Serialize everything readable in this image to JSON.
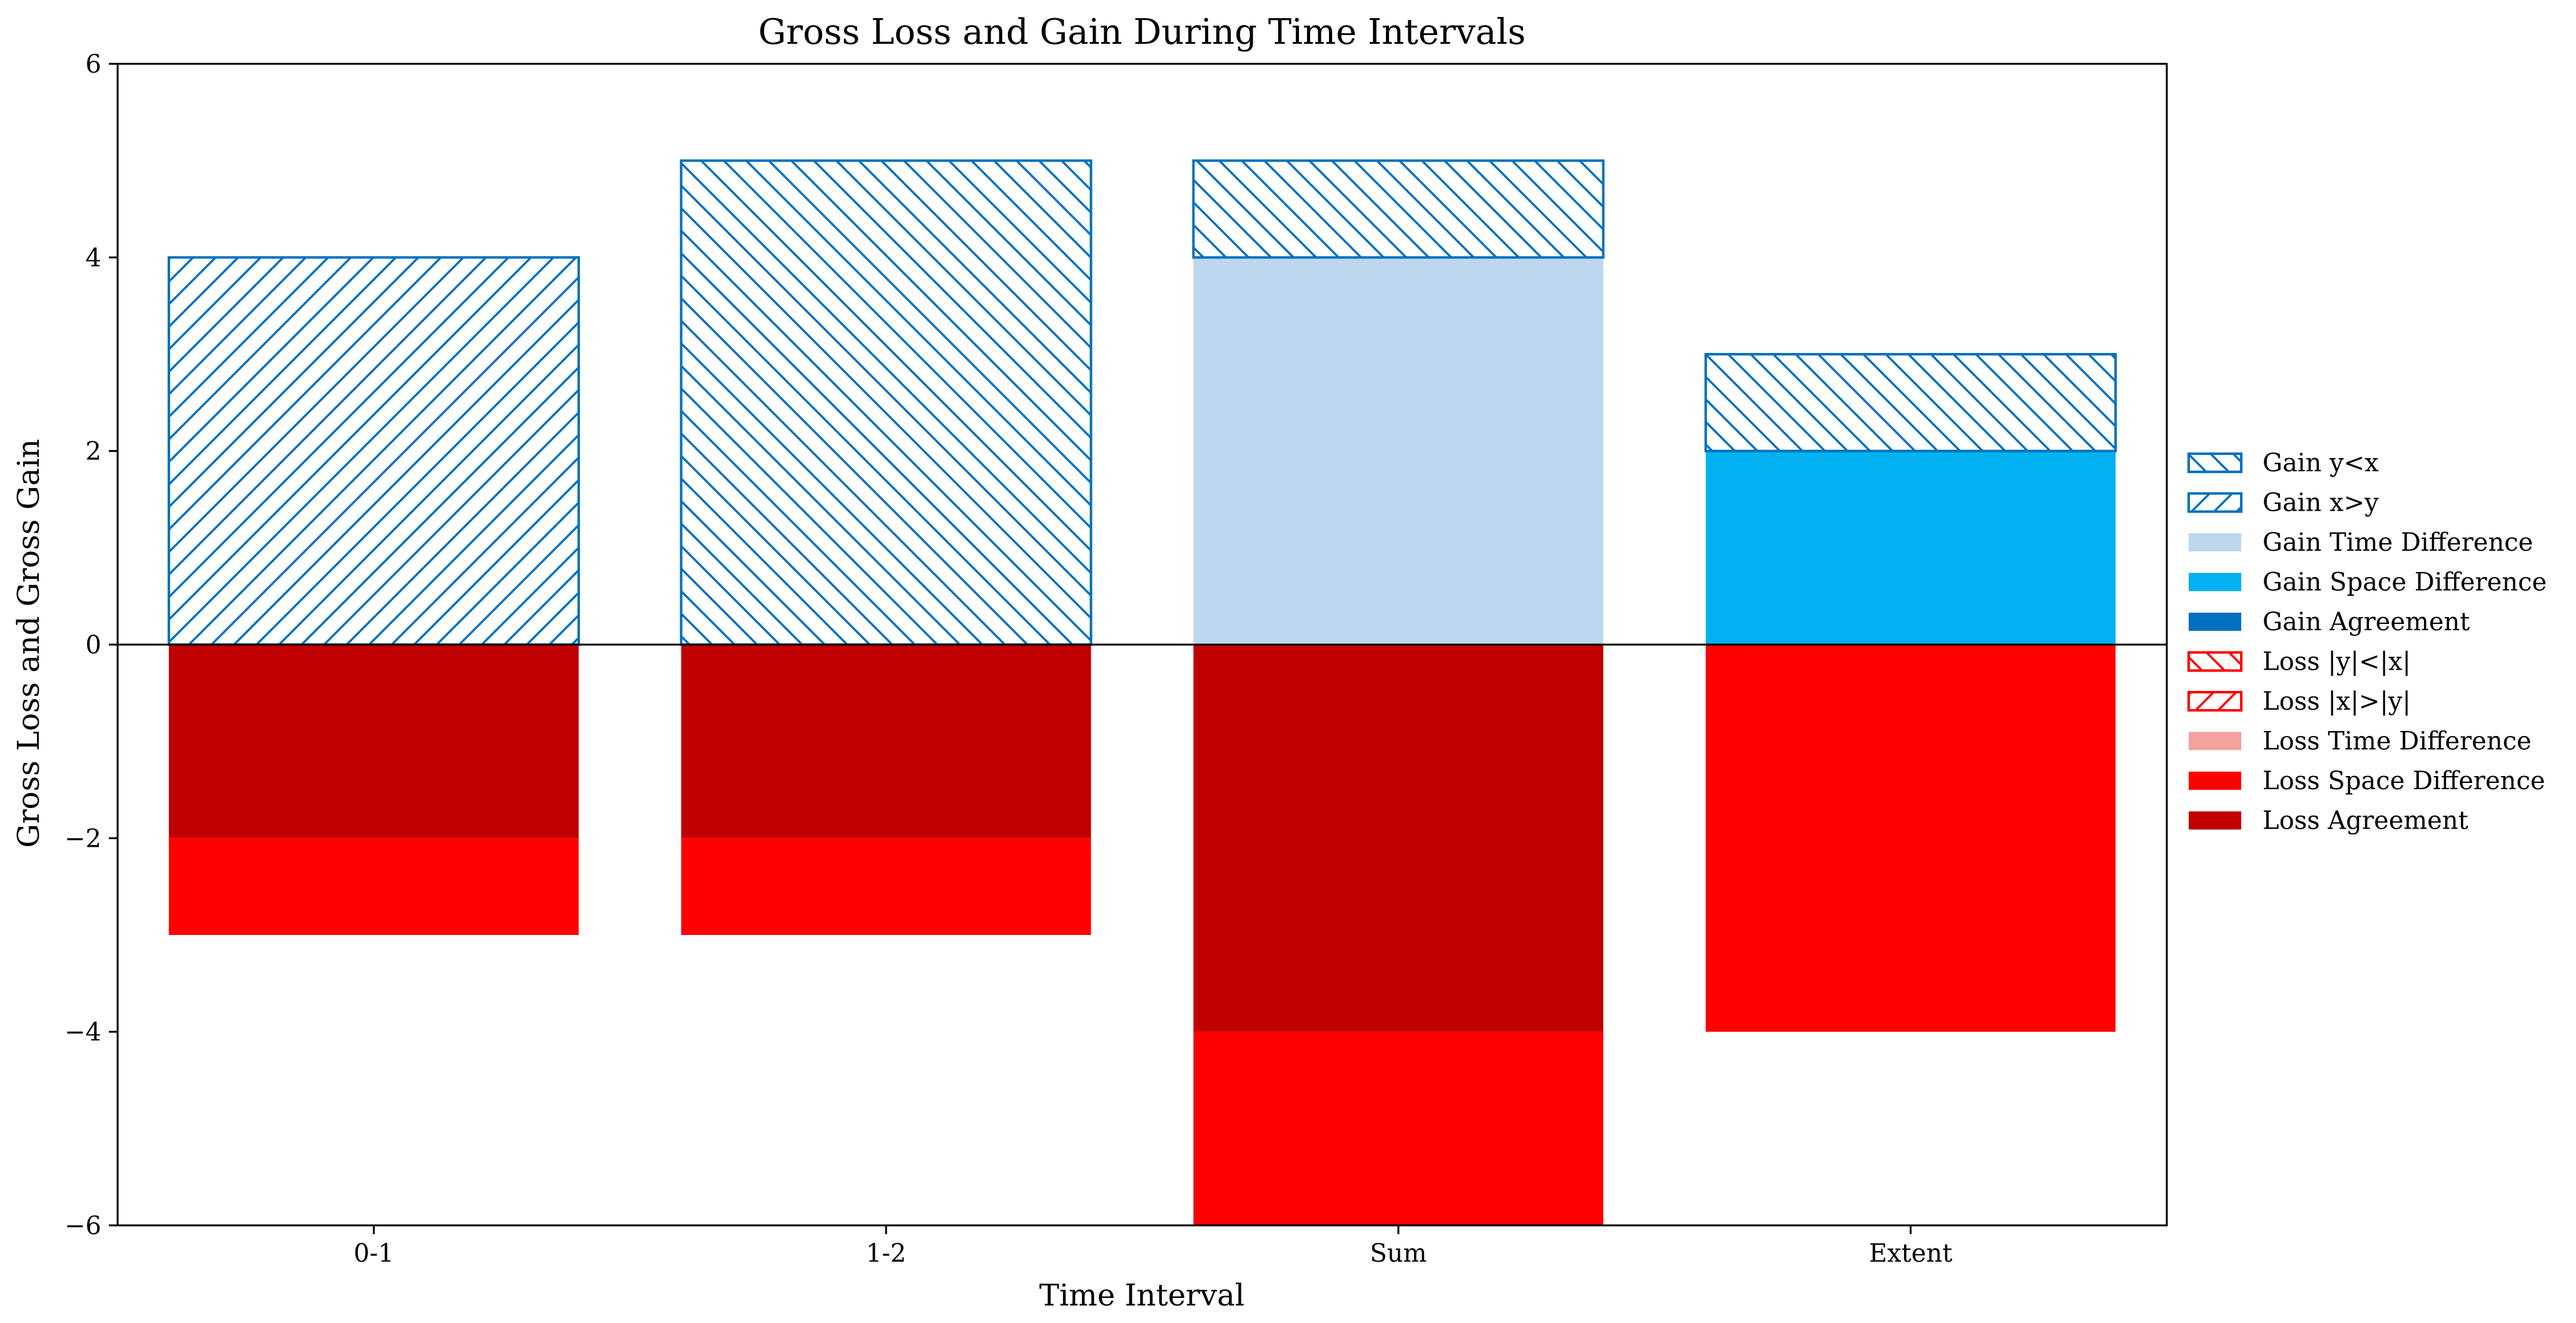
{
  "chart_data": {
    "type": "bar",
    "title": "Gross Loss and Gain During Time Intervals",
    "xlabel": "Time Interval",
    "ylabel": "Gross Loss and Gross Gain",
    "categories": [
      "0-1",
      "1-2",
      "Sum",
      "Extent"
    ],
    "ylim": [
      -6,
      6
    ],
    "yticks": [
      -6,
      -4,
      -2,
      0,
      2,
      4,
      6
    ],
    "ytick_labels": [
      "−6",
      "−4",
      "−2",
      "0",
      "2",
      "4",
      "6"
    ],
    "grid": false,
    "stacked": true,
    "legend_position": "right",
    "series": [
      {
        "name": "Gain y<x",
        "values": [
          0,
          5,
          1,
          1
        ],
        "style": "hatch",
        "hatch": "backslash",
        "color": "#0070c0"
      },
      {
        "name": "Gain x>y",
        "values": [
          4,
          0,
          0,
          0
        ],
        "style": "hatch",
        "hatch": "slash",
        "color": "#0070c0"
      },
      {
        "name": "Gain Time Difference",
        "values": [
          0,
          0,
          4,
          0
        ],
        "style": "fill",
        "color": "#bdd7ee"
      },
      {
        "name": "Gain Space Difference",
        "values": [
          0,
          0,
          0,
          2
        ],
        "style": "fill",
        "color": "#00b0f0"
      },
      {
        "name": "Gain Agreement",
        "values": [
          0,
          0,
          0,
          0
        ],
        "style": "fill",
        "color": "#0070c0"
      },
      {
        "name": "Loss |y|<|x|",
        "values": [
          0,
          0,
          0,
          0
        ],
        "style": "hatch",
        "hatch": "backslash",
        "color": "#ff0000"
      },
      {
        "name": "Loss |x|>|y|",
        "values": [
          0,
          0,
          0,
          0
        ],
        "style": "hatch",
        "hatch": "slash",
        "color": "#ff0000"
      },
      {
        "name": "Loss Time Difference",
        "values": [
          0,
          0,
          0,
          0
        ],
        "style": "fill",
        "color": "#f4a09c"
      },
      {
        "name": "Loss Space Difference",
        "values": [
          -1,
          -1,
          -2,
          -4
        ],
        "style": "fill",
        "color": "#ff0000"
      },
      {
        "name": "Loss Agreement",
        "values": [
          -2,
          -2,
          -4,
          0
        ],
        "style": "fill",
        "color": "#c00000"
      }
    ],
    "gain_stack_order": [
      "Gain Agreement",
      "Gain Space Difference",
      "Gain Time Difference",
      "Gain x>y",
      "Gain y<x"
    ],
    "loss_stack_order": [
      "Loss Agreement",
      "Loss Space Difference",
      "Loss Time Difference",
      "Loss |x|>|y|",
      "Loss |y|<|x|"
    ]
  }
}
